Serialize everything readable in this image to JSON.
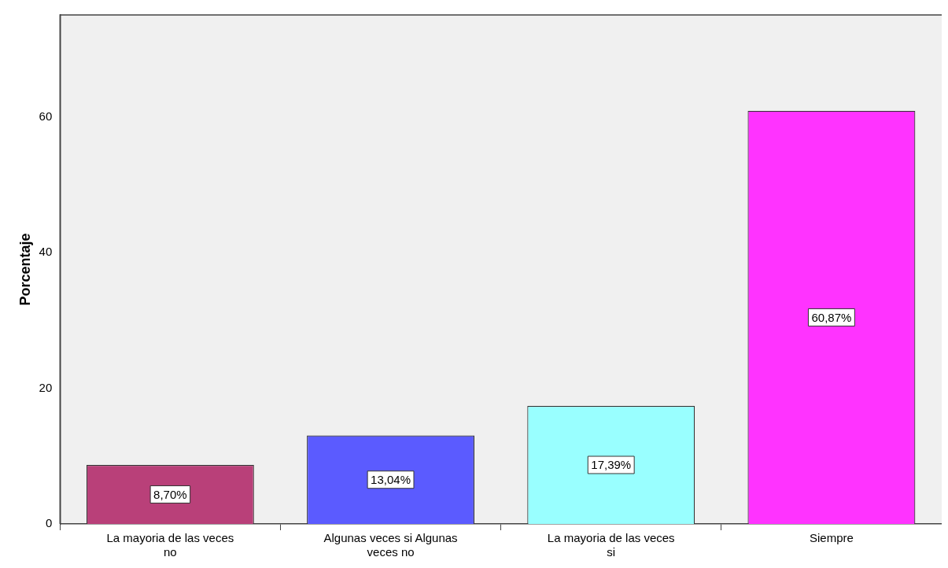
{
  "chart_data": {
    "type": "bar",
    "ylabel": "Porcentaje",
    "categories": [
      "La mayoria de las veces no",
      "Algunas veces si Algunas veces no",
      "La mayoria de las veces si",
      "Siempre"
    ],
    "values": [
      8.7,
      13.04,
      17.39,
      60.87
    ],
    "colors": [
      "#b94079",
      "#5b5bff",
      "#99ffff",
      "#ff33ff"
    ],
    "value_labels": [
      "8,70%",
      "13,04%",
      "17,39%",
      "60,87%"
    ],
    "ylim": [
      0,
      75
    ],
    "yticks": [
      0,
      20,
      40,
      60
    ],
    "grid": false,
    "legend": false
  }
}
